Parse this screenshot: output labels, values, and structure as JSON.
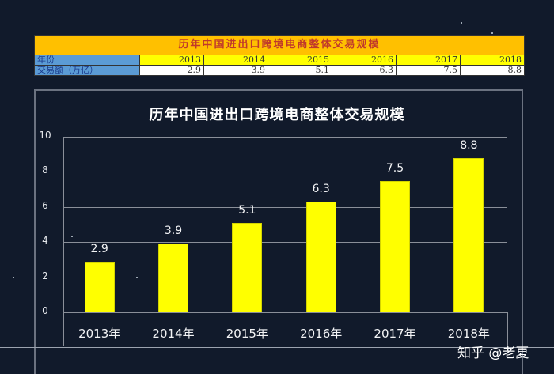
{
  "table": {
    "title": "历年中国进出口跨境电商整体交易规模",
    "row_labels": [
      "年份",
      "交易额（万亿）"
    ],
    "years": [
      "2013",
      "2014",
      "2015",
      "2016",
      "2017",
      "2018"
    ],
    "amounts": [
      "2.9",
      "3.9",
      "5.1",
      "6.3",
      "7.5",
      "8.8"
    ]
  },
  "chart_data": {
    "type": "bar",
    "title": "历年中国进出口跨境电商整体交易规模",
    "categories": [
      "2013年",
      "2014年",
      "2015年",
      "2016年",
      "2017年",
      "2018年"
    ],
    "values": [
      2.9,
      3.9,
      5.1,
      6.3,
      7.5,
      8.8
    ],
    "data_labels": [
      "2.9",
      "3.9",
      "5.1",
      "6.3",
      "7.5",
      "8.8"
    ],
    "xlabel": "",
    "ylabel": "",
    "ylim": [
      0,
      10
    ],
    "yticks": [
      "0",
      "2",
      "4",
      "6",
      "8",
      "10"
    ],
    "grid": true,
    "legend": "none",
    "bar_color": "#FFFF00"
  },
  "watermark": "知乎 @老夏",
  "colors": {
    "background": "#111a2b",
    "table_title_bg": "#FFC000",
    "table_title_text": "#c0392b",
    "label_bg": "#5B9BD5",
    "year_bg": "#FFFF00"
  }
}
